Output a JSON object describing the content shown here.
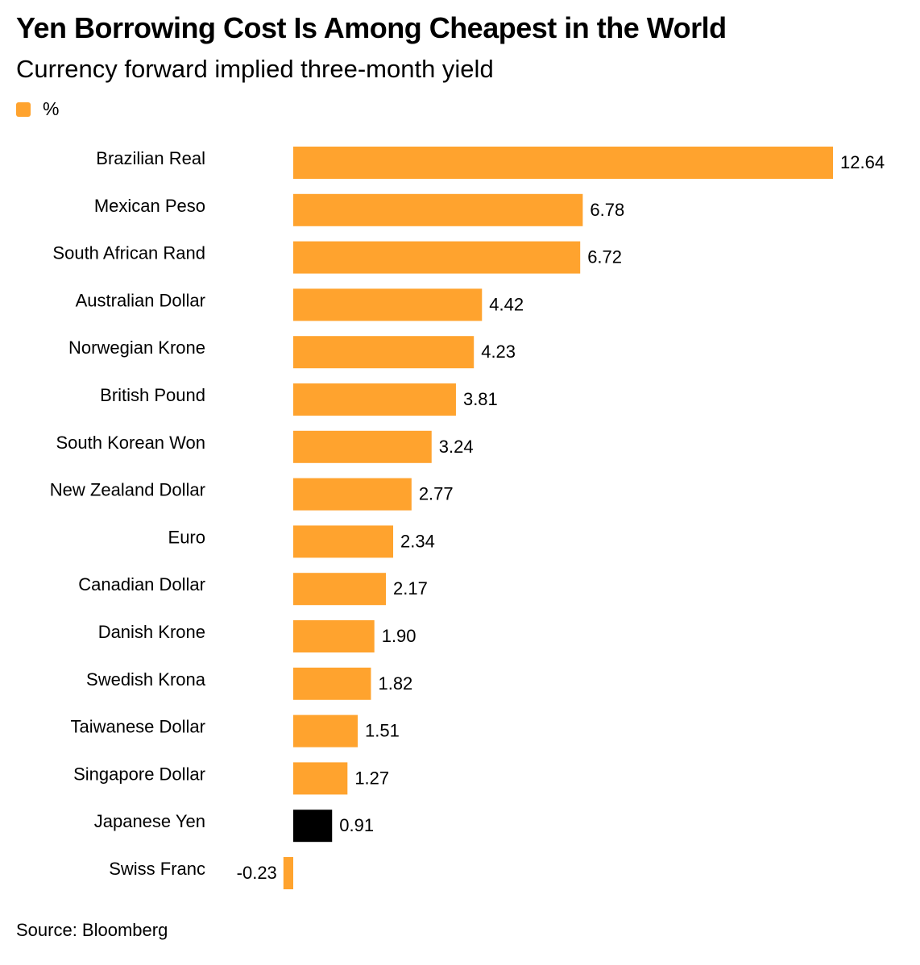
{
  "header": {
    "title": "Yen Borrowing Cost Is Among Cheapest in the World",
    "subtitle": "Currency forward implied three-month yield"
  },
  "legend": {
    "label": "%",
    "color": "#FFA32E"
  },
  "footer": {
    "source": "Source: Bloomberg"
  },
  "colors": {
    "bar": "#FFA32E",
    "highlight": "#000000"
  },
  "chart_data": {
    "type": "bar",
    "orientation": "horizontal",
    "categories": [
      "Brazilian Real",
      "Mexican Peso",
      "South African Rand",
      "Australian Dollar",
      "Norwegian Krone",
      "British Pound",
      "South Korean Won",
      "New Zealand Dollar",
      "Euro",
      "Canadian Dollar",
      "Danish Krone",
      "Swedish Krona",
      "Taiwanese Dollar",
      "Singapore Dollar",
      "Japanese Yen",
      "Swiss Franc"
    ],
    "series": [
      {
        "name": "%",
        "values": [
          12.64,
          6.78,
          6.72,
          4.42,
          4.23,
          3.81,
          3.24,
          2.77,
          2.34,
          2.17,
          1.9,
          1.82,
          1.51,
          1.27,
          0.91,
          -0.23
        ]
      }
    ],
    "value_labels": [
      "12.64",
      "6.78",
      "6.72",
      "4.42",
      "4.23",
      "3.81",
      "3.24",
      "2.77",
      "2.34",
      "2.17",
      "1.90",
      "1.82",
      "1.51",
      "1.27",
      "0.91",
      "-0.23"
    ],
    "highlight_category": "Japanese Yen",
    "xlim": [
      -0.23,
      12.64
    ],
    "grid": false,
    "legend_position": "top-left"
  }
}
